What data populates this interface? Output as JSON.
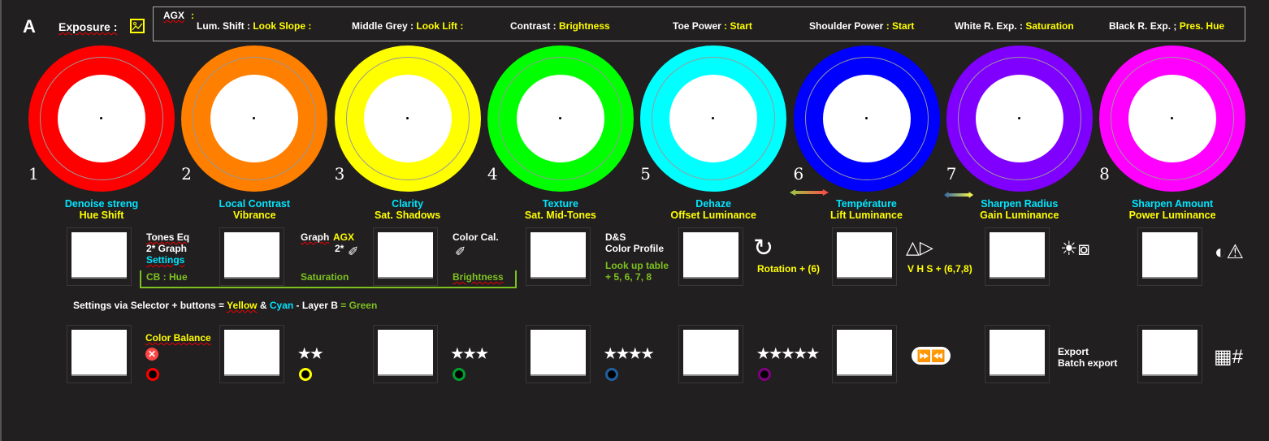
{
  "header": {
    "letter": "A",
    "exposure_label": "Exposure :",
    "image_icon": "image-icon"
  },
  "agx": {
    "title": "AGX",
    "colon": ":",
    "params": [
      {
        "label": "Lum. Shift :",
        "value": "Look Slope :"
      },
      {
        "label": "Middle Grey :",
        "value": "Look Lift :"
      },
      {
        "label": "Contrast :",
        "value": "Brightness"
      },
      {
        "label": "Toe Power",
        "value": ": Start"
      },
      {
        "label": "Shoulder Power",
        "value": ": Start"
      },
      {
        "label": "White R. Exp. :",
        "value": "Saturation"
      },
      {
        "label": "Black R. Exp. ;",
        "value": "Pres. Hue"
      }
    ]
  },
  "dials": [
    {
      "num": "1",
      "color": "#ff0000",
      "top": "Denoise streng",
      "bottom": "Hue Shift"
    },
    {
      "num": "2",
      "color": "#ff7f00",
      "top": "Local Contrast",
      "bottom": "Vibrance"
    },
    {
      "num": "3",
      "color": "#ffff00",
      "top": "Clarity",
      "bottom": "Sat. Shadows"
    },
    {
      "num": "4",
      "color": "#00ff00",
      "top": "Texture",
      "bottom": "Sat. Mid-Tones"
    },
    {
      "num": "5",
      "color": "#00ffff",
      "top": "Dehaze",
      "bottom": "Offset Luminance"
    },
    {
      "num": "6",
      "color": "#0000ff",
      "top": "Température",
      "bottom": "Lift Luminance"
    },
    {
      "num": "7",
      "color": "#8000ff",
      "top": "Sharpen Radius",
      "bottom": "Gain Luminance"
    },
    {
      "num": "8",
      "color": "#ff00ff",
      "top": "Sharpen Amount",
      "bottom": "Power Luminance"
    }
  ],
  "row1": {
    "tones_eq": "Tones Eq",
    "graph2": "2* Graph",
    "settings": "Settings",
    "cb_hue": "CB : Hue",
    "graph": "Graph",
    "agx": "AGX",
    "two_star": "2*",
    "saturation": "Saturation",
    "color_cal": "Color Cal.",
    "brightness": "Brightness",
    "ds": "D&S",
    "color_profile": "Color Profile",
    "lut": "Look up table",
    "lut_nums": "+ 5, 6, 7, 8",
    "rotation": "Rotation + (6)",
    "vhs": "V H S + (6,7,8)"
  },
  "legend": {
    "a": "Settings via Selector + buttons = ",
    "yellow": "Yellow",
    "amp": " & ",
    "cyan": "Cyan",
    "b": " - Layer B ",
    "green": "= Green"
  },
  "row2": {
    "color_balance": "Color Balance",
    "export": "Export",
    "batch_export": "Batch export",
    "stars": [
      "★★",
      "★★★",
      "★★★★",
      "★★★★★"
    ],
    "circle_colors": [
      "#ff0000",
      "#ffff00",
      "#00a030",
      "#2060a0",
      "#800080"
    ]
  },
  "colors": {
    "background": "#221f20",
    "yellow": "#ffff00",
    "cyan": "#00e5ff",
    "green": "#7dc11f"
  }
}
